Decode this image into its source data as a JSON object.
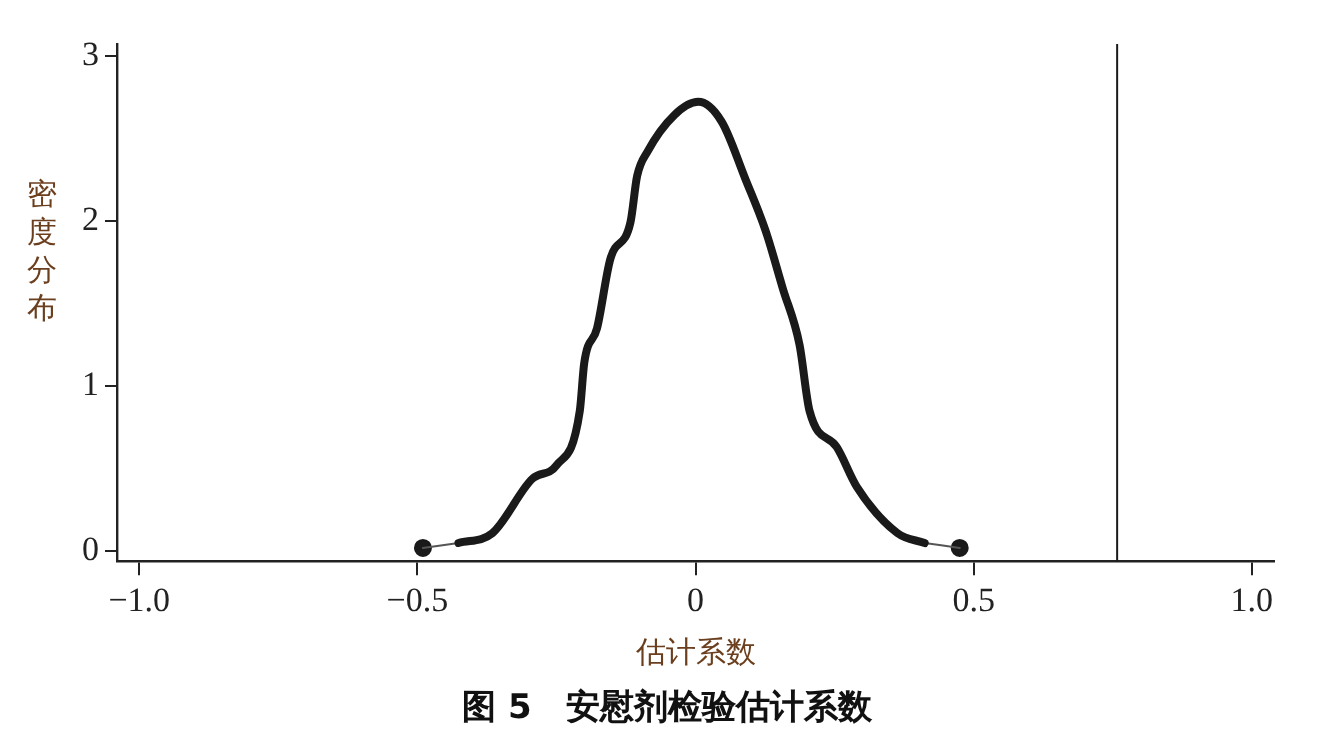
{
  "chart_data": {
    "type": "line",
    "title": "图 5　安慰剂检验估计系数",
    "xlabel": "估计系数",
    "ylabel": "密度分布",
    "xlim": [
      -1.04,
      1.04
    ],
    "xticks": [
      {
        "value": -1,
        "label": "−1.0"
      },
      {
        "value": -0.5,
        "label": "−0.5"
      },
      {
        "value": 0,
        "label": "0"
      },
      {
        "value": 0.5,
        "label": "0.5"
      },
      {
        "value": 1,
        "label": "1.0"
      }
    ],
    "ylim": [
      -0.06,
      3.07
    ],
    "yticks": [
      0,
      1,
      2,
      3
    ],
    "grid": false,
    "legend": false,
    "series": [
      {
        "type": "line",
        "color": "#1a1a1a",
        "marker": "none",
        "x": [
          -0.426,
          -0.365,
          -0.293,
          -0.25,
          -0.208,
          -0.2,
          -0.177,
          -0.153,
          -0.117,
          -0.105,
          -0.086,
          -0.038,
          0.005,
          0.047,
          0.09,
          0.126,
          0.157,
          0.187,
          0.205,
          0.254,
          0.29,
          0.363,
          0.412
        ],
        "values": [
          0.05,
          0.11,
          0.44,
          0.52,
          0.85,
          1.14,
          1.35,
          1.77,
          1.99,
          2.27,
          2.42,
          2.64,
          2.72,
          2.6,
          2.25,
          1.94,
          1.59,
          1.25,
          0.85,
          0.63,
          0.39,
          0.11,
          0.05
        ]
      },
      {
        "type": "line",
        "color": "#555555",
        "marker": "none",
        "x": [
          -0.49,
          -0.426
        ],
        "values": [
          0.02,
          0.05
        ]
      },
      {
        "type": "line",
        "color": "#555555",
        "marker": "none",
        "x": [
          0.412,
          0.475
        ],
        "values": [
          0.05,
          0.02
        ]
      },
      {
        "type": "scatter",
        "color": "#1a1a1a",
        "marker": "circle",
        "x": [
          -0.49,
          0.475
        ],
        "values": [
          0.02,
          0.02
        ]
      }
    ],
    "ref_lines": [
      {
        "axis": "x",
        "value": 0.758,
        "color": "#1a1a1a"
      }
    ]
  }
}
